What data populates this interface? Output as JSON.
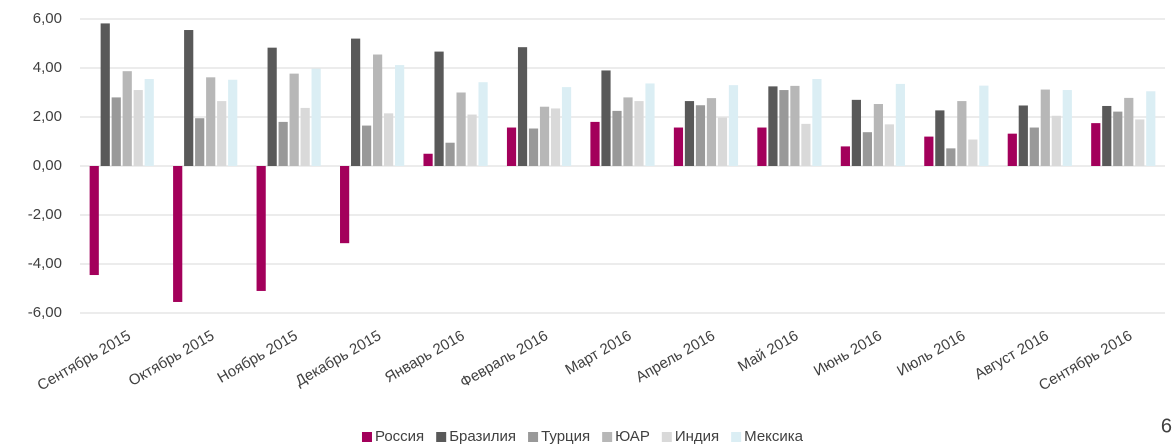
{
  "chart_data": {
    "type": "bar",
    "categories": [
      "Сентябрь 2015",
      "Октябрь 2015",
      "Ноябрь 2015",
      "Декабрь 2015",
      "Январь 2016",
      "Февраль 2016",
      "Март 2016",
      "Апрель 2016",
      "Май 2016",
      "Июнь 2016",
      "Июль 2016",
      "Август 2016",
      "Сентябрь 2016"
    ],
    "series": [
      {
        "name": "Россия",
        "color": "#a3005b",
        "values": [
          -4.45,
          -5.55,
          -5.1,
          -3.15,
          0.5,
          1.57,
          1.8,
          1.57,
          1.57,
          0.8,
          1.2,
          1.32,
          1.75
        ]
      },
      {
        "name": "Бразилия",
        "color": "#595959",
        "values": [
          5.82,
          5.55,
          4.83,
          5.2,
          4.67,
          4.85,
          3.9,
          2.65,
          3.25,
          2.7,
          2.27,
          2.47,
          2.45
        ]
      },
      {
        "name": "Турция",
        "color": "#999999",
        "values": [
          2.8,
          1.95,
          1.8,
          1.65,
          0.95,
          1.53,
          2.25,
          2.48,
          3.1,
          1.38,
          0.72,
          1.57,
          2.22
        ]
      },
      {
        "name": "ЮАР",
        "color": "#b7b7b7",
        "values": [
          3.87,
          3.62,
          3.77,
          4.55,
          3.0,
          2.42,
          2.8,
          2.77,
          3.27,
          2.53,
          2.65,
          3.12,
          2.78
        ]
      },
      {
        "name": "Индия",
        "color": "#d9d9d9",
        "values": [
          3.1,
          2.65,
          2.37,
          2.15,
          2.1,
          2.35,
          2.65,
          1.97,
          1.72,
          1.7,
          1.08,
          2.05,
          1.9
        ]
      },
      {
        "name": "Мексика",
        "color": "#dbeef4",
        "values": [
          3.55,
          3.52,
          3.97,
          4.12,
          3.42,
          3.22,
          3.37,
          3.3,
          3.55,
          3.35,
          3.28,
          3.1,
          3.05
        ]
      }
    ],
    "ylim": [
      -6,
      6
    ],
    "yticks": [
      {
        "value": -6,
        "label": "-6,00"
      },
      {
        "value": -4,
        "label": "-4,00"
      },
      {
        "value": -2,
        "label": "-2,00"
      },
      {
        "value": 0,
        "label": "0,00"
      },
      {
        "value": 2,
        "label": "2,00"
      },
      {
        "value": 4,
        "label": "4,00"
      },
      {
        "value": 6,
        "label": "6,00"
      }
    ],
    "grid": true,
    "legend": "bottom"
  },
  "page_number": "6"
}
